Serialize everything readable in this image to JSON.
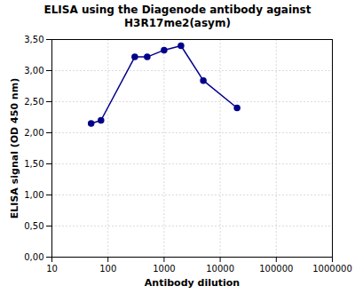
{
  "chart_data": {
    "type": "line",
    "title": "ELISA using the Diagenode antibody against\nH3R17me2(asym)",
    "x_label": "Antibody dilution",
    "y_label": "ELISA signal (OD 450 nm)",
    "x": [
      50,
      75,
      300,
      500,
      1000,
      2000,
      5000,
      20000
    ],
    "values": [
      2.15,
      2.2,
      3.22,
      3.22,
      3.33,
      3.4,
      2.84,
      2.4
    ],
    "color": "#00008B",
    "marker": "circle",
    "log": "x",
    "xlim": [
      10,
      1000000
    ],
    "xticks": [
      10,
      100,
      1000,
      10000,
      100000,
      1000000
    ],
    "ylim": [
      0,
      3.5
    ],
    "yticks": [
      {
        "value": 0.0,
        "label": "0,00"
      },
      {
        "value": 0.5,
        "label": "0,50"
      },
      {
        "value": 1.0,
        "label": "1,00"
      },
      {
        "value": 1.5,
        "label": "1,50"
      },
      {
        "value": 2.0,
        "label": "2,00"
      },
      {
        "value": 2.5,
        "label": "2,50"
      },
      {
        "value": 3.0,
        "label": "3,00"
      },
      {
        "value": 3.5,
        "label": "3,50"
      }
    ],
    "grid": true
  }
}
